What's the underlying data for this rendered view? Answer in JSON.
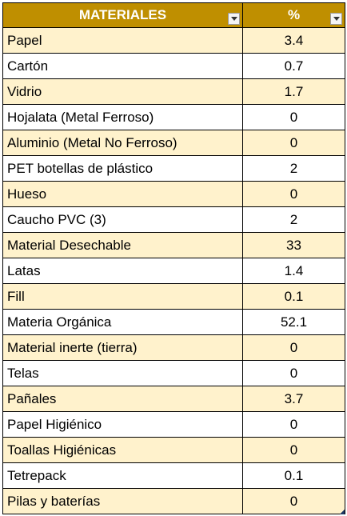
{
  "table": {
    "headers": {
      "material": "MATERIALES",
      "percent": "%"
    },
    "rows": [
      {
        "material": "Papel",
        "percent": "3.4"
      },
      {
        "material": "Cartón",
        "percent": "0.7"
      },
      {
        "material": "Vidrio",
        "percent": "1.7"
      },
      {
        "material": "Hojalata (Metal Ferroso)",
        "percent": "0"
      },
      {
        "material": "Aluminio (Metal No Ferroso)",
        "percent": "0"
      },
      {
        "material": "PET botellas de plástico",
        "percent": "2"
      },
      {
        "material": "Hueso",
        "percent": "0"
      },
      {
        "material": "Caucho PVC (3)",
        "percent": "2"
      },
      {
        "material": "Material Desechable",
        "percent": "33"
      },
      {
        "material": "Latas",
        "percent": "1.4"
      },
      {
        "material": "Fill",
        "percent": "0.1"
      },
      {
        "material": "Materia Orgánica",
        "percent": "52.1"
      },
      {
        "material": "Material inerte (tierra)",
        "percent": "0"
      },
      {
        "material": "Telas",
        "percent": "0"
      },
      {
        "material": "Pañales",
        "percent": "3.7"
      },
      {
        "material": "Papel Higiénico",
        "percent": "0"
      },
      {
        "material": "Toallas Higiénicas",
        "percent": "0"
      },
      {
        "material": "Tetrepack",
        "percent": "0.1"
      },
      {
        "material": "Pilas y baterías",
        "percent": "0"
      }
    ]
  },
  "icons": {
    "filter": "chevron-down-icon",
    "resize": "resize-handle-icon"
  },
  "colors": {
    "header_bg": "#bf8f00",
    "header_text": "#ffffff",
    "band_row": "#fff2cc",
    "plain_row": "#ffffff"
  }
}
